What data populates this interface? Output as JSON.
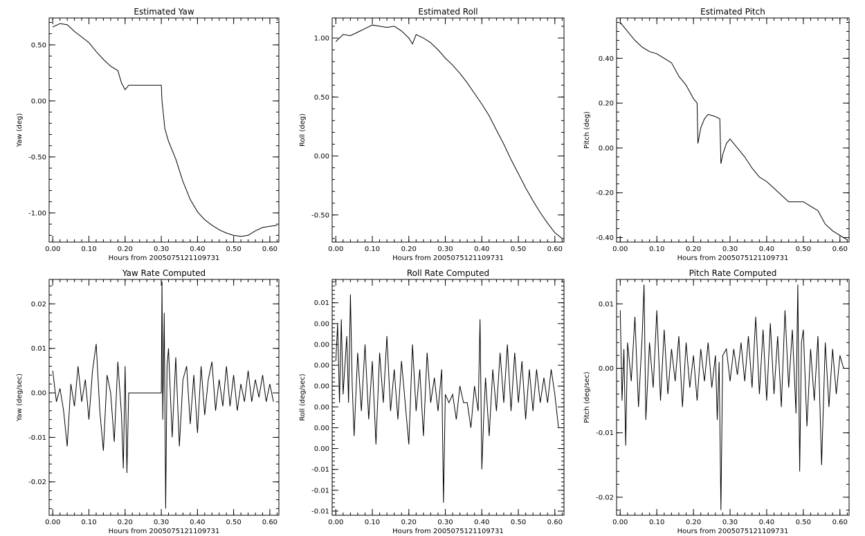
{
  "chart_data": [
    {
      "type": "line",
      "title": "Estimated Yaw",
      "xlabel": "Hours from 2005075121109731",
      "ylabel": "Yaw (deg)",
      "xlim": [
        -0.01,
        0.625
      ],
      "ylim": [
        -1.26,
        0.74
      ],
      "xticks": [
        0.0,
        0.1,
        0.2,
        0.3,
        0.4,
        0.5,
        0.6
      ],
      "xtick_labels": [
        "0.00",
        "0.10",
        "0.20",
        "0.30",
        "0.40",
        "0.50",
        "0.60"
      ],
      "yticks": [
        0.5,
        0.0,
        -0.5,
        -1.0
      ],
      "ytick_labels": [
        "0.50",
        "0.00",
        "-0.50",
        "-1.00"
      ],
      "series": [
        {
          "x": [
            0.0,
            0.02,
            0.04,
            0.06,
            0.08,
            0.1,
            0.12,
            0.14,
            0.16,
            0.18,
            0.19,
            0.2,
            0.21,
            0.24,
            0.27,
            0.3,
            0.302,
            0.31,
            0.32,
            0.34,
            0.36,
            0.38,
            0.4,
            0.42,
            0.44,
            0.46,
            0.48,
            0.5,
            0.52,
            0.54,
            0.56,
            0.58,
            0.6,
            0.62
          ],
          "y": [
            0.66,
            0.69,
            0.68,
            0.62,
            0.57,
            0.52,
            0.44,
            0.37,
            0.31,
            0.27,
            0.16,
            0.1,
            0.14,
            0.14,
            0.14,
            0.14,
            0.0,
            -0.25,
            -0.36,
            -0.52,
            -0.72,
            -0.88,
            -0.99,
            -1.06,
            -1.11,
            -1.15,
            -1.18,
            -1.2,
            -1.21,
            -1.2,
            -1.16,
            -1.13,
            -1.12,
            -1.11
          ]
        }
      ]
    },
    {
      "type": "line",
      "title": "Estimated Roll",
      "xlabel": "Hours from 2005075121109731",
      "ylabel": "Roll (deg)",
      "xlim": [
        -0.01,
        0.625
      ],
      "ylim": [
        -0.73,
        1.17
      ],
      "xticks": [
        0.0,
        0.1,
        0.2,
        0.3,
        0.4,
        0.5,
        0.6
      ],
      "xtick_labels": [
        "0.00",
        "0.10",
        "0.20",
        "0.30",
        "0.40",
        "0.50",
        "0.60"
      ],
      "yticks": [
        1.0,
        0.5,
        0.0,
        -0.5
      ],
      "ytick_labels": [
        "1.00",
        "0.50",
        "0.00",
        "-0.50"
      ],
      "series": [
        {
          "x": [
            0.0,
            0.02,
            0.04,
            0.06,
            0.08,
            0.1,
            0.12,
            0.14,
            0.16,
            0.18,
            0.2,
            0.21,
            0.22,
            0.24,
            0.26,
            0.28,
            0.3,
            0.32,
            0.34,
            0.36,
            0.38,
            0.4,
            0.42,
            0.44,
            0.46,
            0.48,
            0.5,
            0.52,
            0.54,
            0.56,
            0.58,
            0.6,
            0.62
          ],
          "y": [
            0.97,
            1.03,
            1.02,
            1.05,
            1.08,
            1.11,
            1.1,
            1.09,
            1.1,
            1.06,
            1.0,
            0.95,
            1.03,
            1.0,
            0.96,
            0.9,
            0.83,
            0.77,
            0.7,
            0.62,
            0.53,
            0.44,
            0.34,
            0.22,
            0.1,
            -0.03,
            -0.15,
            -0.27,
            -0.38,
            -0.48,
            -0.57,
            -0.65,
            -0.7
          ]
        }
      ]
    },
    {
      "type": "line",
      "title": "Estimated Pitch",
      "xlabel": "Hours from 2005075121109731",
      "ylabel": "Pitch (deg)",
      "xlim": [
        -0.01,
        0.625
      ],
      "ylim": [
        -0.42,
        0.58
      ],
      "xticks": [
        0.0,
        0.1,
        0.2,
        0.3,
        0.4,
        0.5,
        0.6
      ],
      "xtick_labels": [
        "0.00",
        "0.10",
        "0.20",
        "0.30",
        "0.40",
        "0.50",
        "0.60"
      ],
      "yticks": [
        0.4,
        0.2,
        0.0,
        -0.2,
        -0.4
      ],
      "ytick_labels": [
        "0.40",
        "0.20",
        "0.00",
        "-0.20",
        "-0.40"
      ],
      "series": [
        {
          "x": [
            0.0,
            0.02,
            0.04,
            0.06,
            0.08,
            0.1,
            0.12,
            0.14,
            0.16,
            0.18,
            0.2,
            0.21,
            0.212,
            0.22,
            0.23,
            0.24,
            0.26,
            0.272,
            0.275,
            0.28,
            0.29,
            0.3,
            0.32,
            0.34,
            0.36,
            0.38,
            0.4,
            0.42,
            0.44,
            0.46,
            0.48,
            0.5,
            0.52,
            0.54,
            0.56,
            0.58,
            0.6,
            0.62
          ],
          "y": [
            0.56,
            0.52,
            0.48,
            0.45,
            0.43,
            0.42,
            0.4,
            0.38,
            0.32,
            0.28,
            0.22,
            0.2,
            0.02,
            0.09,
            0.13,
            0.15,
            0.14,
            0.13,
            -0.07,
            -0.03,
            0.02,
            0.04,
            0.0,
            -0.04,
            -0.09,
            -0.13,
            -0.15,
            -0.18,
            -0.21,
            -0.24,
            -0.24,
            -0.24,
            -0.26,
            -0.28,
            -0.34,
            -0.37,
            -0.39,
            -0.41
          ]
        }
      ]
    },
    {
      "type": "line",
      "title": "Yaw Rate Computed",
      "xlabel": "Hours from 2005075121109731",
      "ylabel": "Yaw (deg/sec)",
      "xlim": [
        -0.01,
        0.625
      ],
      "ylim": [
        -0.0275,
        0.0255
      ],
      "xticks": [
        0.0,
        0.1,
        0.2,
        0.3,
        0.4,
        0.5,
        0.6
      ],
      "xtick_labels": [
        "0.00",
        "0.10",
        "0.20",
        "0.30",
        "0.40",
        "0.50",
        "0.60"
      ],
      "yticks": [
        0.02,
        0.01,
        0.0,
        -0.01,
        -0.02
      ],
      "ytick_labels": [
        "0.02",
        "0.01",
        "0.00",
        "-0.01",
        "-0.02"
      ],
      "series": [
        {
          "x": [
            0.0,
            0.01,
            0.02,
            0.03,
            0.04,
            0.05,
            0.06,
            0.07,
            0.08,
            0.09,
            0.1,
            0.11,
            0.12,
            0.13,
            0.14,
            0.15,
            0.16,
            0.17,
            0.18,
            0.19,
            0.195,
            0.2,
            0.205,
            0.21,
            0.3,
            0.302,
            0.304,
            0.308,
            0.312,
            0.316,
            0.32,
            0.33,
            0.34,
            0.35,
            0.36,
            0.37,
            0.38,
            0.39,
            0.4,
            0.41,
            0.42,
            0.43,
            0.44,
            0.45,
            0.46,
            0.47,
            0.48,
            0.49,
            0.5,
            0.51,
            0.52,
            0.53,
            0.54,
            0.55,
            0.56,
            0.57,
            0.58,
            0.59,
            0.6,
            0.61
          ],
          "y": [
            0.005,
            -0.002,
            0.001,
            -0.004,
            -0.012,
            0.002,
            -0.003,
            0.006,
            -0.002,
            0.003,
            -0.006,
            0.005,
            0.011,
            -0.004,
            -0.013,
            0.004,
            0.0,
            -0.011,
            0.007,
            -0.005,
            -0.017,
            0.006,
            -0.018,
            0.0,
            0.0,
            0.025,
            -0.006,
            0.018,
            -0.026,
            0.006,
            0.01,
            -0.01,
            0.008,
            -0.012,
            0.003,
            0.006,
            -0.007,
            0.004,
            -0.009,
            0.006,
            -0.005,
            0.003,
            0.007,
            -0.004,
            0.003,
            -0.003,
            0.006,
            -0.003,
            0.004,
            -0.004,
            0.002,
            -0.002,
            0.005,
            -0.002,
            0.003,
            -0.001,
            0.004,
            -0.002,
            0.002,
            -0.002
          ]
        }
      ]
    },
    {
      "type": "line",
      "title": "Roll Rate Computed",
      "xlabel": "Hours from 2005075121109731",
      "ylabel": "Roll (deg/sec)",
      "xlim": [
        -0.01,
        0.625
      ],
      "ylim": [
        -0.0155,
        0.0128
      ],
      "xticks": [
        0.0,
        0.1,
        0.2,
        0.3,
        0.4,
        0.5,
        0.6
      ],
      "xtick_labels": [
        "0.00",
        "0.10",
        "0.20",
        "0.30",
        "0.40",
        "0.50",
        "0.60"
      ],
      "yticks": [
        0.01,
        0.0075,
        0.005,
        0.0025,
        0.0,
        -0.0025,
        -0.005,
        -0.0075,
        -0.01,
        -0.0125,
        -0.015
      ],
      "ytick_labels": [
        "0.01",
        "0.00",
        "0.00",
        "0.00",
        "0.00",
        "0.00",
        "0.00",
        "0.00",
        "-0.01",
        "-0.01",
        "-0.01"
      ],
      "series": [
        {
          "x": [
            0.0,
            0.005,
            0.01,
            0.015,
            0.02,
            0.03,
            0.035,
            0.04,
            0.045,
            0.05,
            0.06,
            0.07,
            0.08,
            0.09,
            0.1,
            0.11,
            0.12,
            0.13,
            0.14,
            0.15,
            0.16,
            0.17,
            0.18,
            0.19,
            0.2,
            0.21,
            0.22,
            0.23,
            0.24,
            0.25,
            0.26,
            0.27,
            0.28,
            0.29,
            0.295,
            0.3,
            0.31,
            0.32,
            0.33,
            0.34,
            0.35,
            0.36,
            0.37,
            0.38,
            0.39,
            0.395,
            0.4,
            0.405,
            0.41,
            0.42,
            0.43,
            0.44,
            0.45,
            0.46,
            0.47,
            0.48,
            0.49,
            0.5,
            0.51,
            0.52,
            0.53,
            0.54,
            0.55,
            0.56,
            0.57,
            0.58,
            0.59,
            0.6,
            0.61
          ],
          "y": [
            0.003,
            0.0075,
            -0.002,
            0.008,
            -0.001,
            0.006,
            -0.002,
            0.011,
            0.0,
            -0.006,
            0.004,
            -0.003,
            0.005,
            -0.004,
            0.003,
            -0.007,
            0.004,
            -0.002,
            0.006,
            -0.003,
            0.002,
            -0.004,
            0.003,
            -0.002,
            -0.007,
            0.005,
            -0.003,
            0.002,
            -0.006,
            0.004,
            -0.002,
            0.001,
            -0.003,
            0.002,
            -0.014,
            -0.001,
            -0.002,
            -0.001,
            -0.004,
            0.0,
            -0.002,
            -0.002,
            -0.005,
            0.0,
            -0.003,
            0.008,
            -0.01,
            -0.004,
            0.001,
            -0.006,
            0.002,
            -0.003,
            0.004,
            -0.002,
            0.005,
            -0.003,
            0.004,
            -0.002,
            0.003,
            -0.004,
            0.002,
            -0.003,
            0.002,
            -0.002,
            0.001,
            -0.002,
            0.002,
            -0.001,
            -0.005
          ]
        }
      ]
    },
    {
      "type": "line",
      "title": "Pitch Rate Computed",
      "xlabel": "Hours from 2005075121109731",
      "ylabel": "Pitch (deg/sec)",
      "xlim": [
        -0.01,
        0.625
      ],
      "ylim": [
        -0.0228,
        0.0138
      ],
      "xticks": [
        0.0,
        0.1,
        0.2,
        0.3,
        0.4,
        0.5,
        0.6
      ],
      "xtick_labels": [
        "0.00",
        "0.10",
        "0.20",
        "0.30",
        "0.40",
        "0.50",
        "0.60"
      ],
      "yticks": [
        0.01,
        0.0,
        -0.01,
        -0.02
      ],
      "ytick_labels": [
        "0.01",
        "0.00",
        "-0.01",
        "-0.02"
      ],
      "series": [
        {
          "x": [
            0.0,
            0.005,
            0.01,
            0.015,
            0.02,
            0.03,
            0.04,
            0.05,
            0.06,
            0.065,
            0.07,
            0.08,
            0.09,
            0.1,
            0.11,
            0.12,
            0.13,
            0.14,
            0.15,
            0.16,
            0.17,
            0.18,
            0.19,
            0.2,
            0.21,
            0.22,
            0.23,
            0.24,
            0.25,
            0.26,
            0.265,
            0.27,
            0.275,
            0.28,
            0.29,
            0.3,
            0.31,
            0.32,
            0.33,
            0.34,
            0.35,
            0.36,
            0.37,
            0.38,
            0.39,
            0.4,
            0.41,
            0.42,
            0.43,
            0.44,
            0.45,
            0.46,
            0.47,
            0.48,
            0.485,
            0.49,
            0.495,
            0.5,
            0.51,
            0.52,
            0.53,
            0.54,
            0.55,
            0.56,
            0.57,
            0.58,
            0.59,
            0.6,
            0.61
          ],
          "y": [
            0.009,
            -0.005,
            0.003,
            -0.012,
            0.004,
            -0.002,
            0.008,
            -0.006,
            0.005,
            0.013,
            -0.008,
            0.004,
            -0.003,
            0.009,
            -0.005,
            0.006,
            -0.004,
            0.003,
            -0.002,
            0.005,
            -0.006,
            0.004,
            -0.003,
            0.002,
            -0.005,
            0.003,
            -0.002,
            0.004,
            -0.003,
            0.002,
            -0.008,
            0.001,
            -0.022,
            0.002,
            0.003,
            -0.002,
            0.003,
            -0.001,
            0.004,
            -0.002,
            0.005,
            -0.003,
            0.008,
            -0.004,
            0.006,
            -0.005,
            0.007,
            -0.004,
            0.005,
            -0.006,
            0.009,
            -0.003,
            0.006,
            -0.007,
            0.013,
            -0.016,
            0.004,
            0.006,
            -0.009,
            0.003,
            -0.005,
            0.005,
            -0.015,
            0.004,
            -0.006,
            0.003,
            -0.004,
            0.002,
            0.0
          ]
        }
      ]
    }
  ]
}
